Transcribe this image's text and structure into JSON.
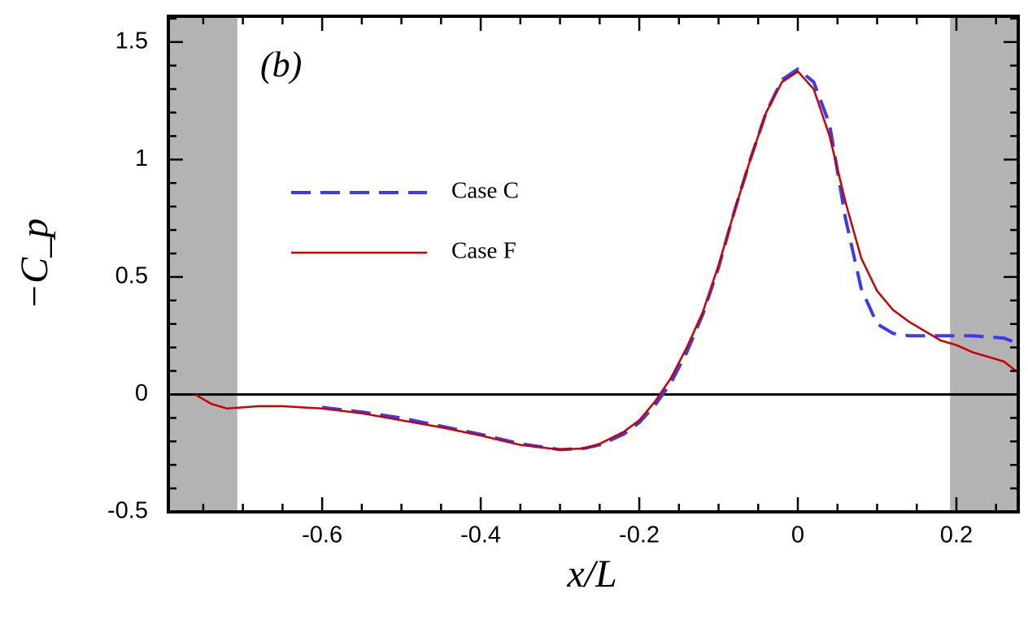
{
  "chart_data": {
    "type": "line",
    "title": "(b)",
    "x_label": "x/L",
    "y_label": "−C_p",
    "xlim": [
      -0.794,
      0.278
    ],
    "ylim": [
      -0.5,
      1.61
    ],
    "xticks": [
      -0.6,
      -0.4,
      -0.2,
      0,
      0.2
    ],
    "yticks": [
      -0.5,
      0,
      0.5,
      1,
      1.5
    ],
    "xticks_minor": [
      -0.75,
      -0.7,
      -0.65,
      -0.55,
      -0.5,
      -0.45,
      -0.35,
      -0.3,
      -0.25,
      -0.15,
      -0.1,
      -0.05,
      0.05,
      0.1,
      0.15,
      0.25
    ],
    "yticks_minor": [
      -0.4,
      -0.3,
      -0.2,
      -0.1,
      0.1,
      0.2,
      0.3,
      0.4,
      0.6,
      0.7,
      0.8,
      0.9,
      1.1,
      1.2,
      1.3,
      1.4,
      1.6
    ],
    "hline": 0,
    "shaded_regions": [
      [
        -0.794,
        -0.707
      ],
      [
        0.192,
        0.278
      ]
    ],
    "shade_color": "#b3b3b3",
    "series": [
      {
        "name": "Case C",
        "color": "#3a3af0",
        "dash": true,
        "x": [
          -0.6,
          -0.55,
          -0.5,
          -0.45,
          -0.4,
          -0.35,
          -0.3,
          -0.27,
          -0.25,
          -0.22,
          -0.2,
          -0.18,
          -0.16,
          -0.14,
          -0.12,
          -0.1,
          -0.08,
          -0.06,
          -0.04,
          -0.02,
          0,
          0.02,
          0.04,
          0.06,
          0.08,
          0.1,
          0.12,
          0.14,
          0.16,
          0.18,
          0.2,
          0.22,
          0.24,
          0.26,
          0.275
        ],
        "values": [
          -0.055,
          -0.075,
          -0.1,
          -0.135,
          -0.17,
          -0.21,
          -0.235,
          -0.23,
          -0.215,
          -0.17,
          -0.12,
          -0.045,
          0.05,
          0.18,
          0.34,
          0.54,
          0.78,
          1.0,
          1.2,
          1.34,
          1.385,
          1.33,
          1.15,
          0.75,
          0.45,
          0.3,
          0.26,
          0.25,
          0.25,
          0.25,
          0.25,
          0.25,
          0.245,
          0.24,
          0.22
        ]
      },
      {
        "name": "Case F",
        "color": "#cc0000",
        "dash": false,
        "x": [
          -0.76,
          -0.74,
          -0.72,
          -0.7,
          -0.68,
          -0.65,
          -0.6,
          -0.55,
          -0.5,
          -0.45,
          -0.4,
          -0.35,
          -0.3,
          -0.27,
          -0.25,
          -0.22,
          -0.2,
          -0.18,
          -0.16,
          -0.14,
          -0.12,
          -0.1,
          -0.08,
          -0.06,
          -0.04,
          -0.02,
          0,
          0.02,
          0.04,
          0.06,
          0.08,
          0.1,
          0.12,
          0.14,
          0.16,
          0.18,
          0.2,
          0.22,
          0.24,
          0.26,
          0.275
        ],
        "values": [
          0.0,
          -0.04,
          -0.06,
          -0.055,
          -0.05,
          -0.05,
          -0.06,
          -0.08,
          -0.11,
          -0.14,
          -0.175,
          -0.215,
          -0.235,
          -0.23,
          -0.21,
          -0.16,
          -0.11,
          -0.03,
          0.07,
          0.2,
          0.35,
          0.55,
          0.78,
          1.0,
          1.2,
          1.33,
          1.375,
          1.3,
          1.1,
          0.82,
          0.58,
          0.44,
          0.36,
          0.31,
          0.27,
          0.23,
          0.21,
          0.18,
          0.16,
          0.14,
          0.1
        ]
      }
    ]
  }
}
